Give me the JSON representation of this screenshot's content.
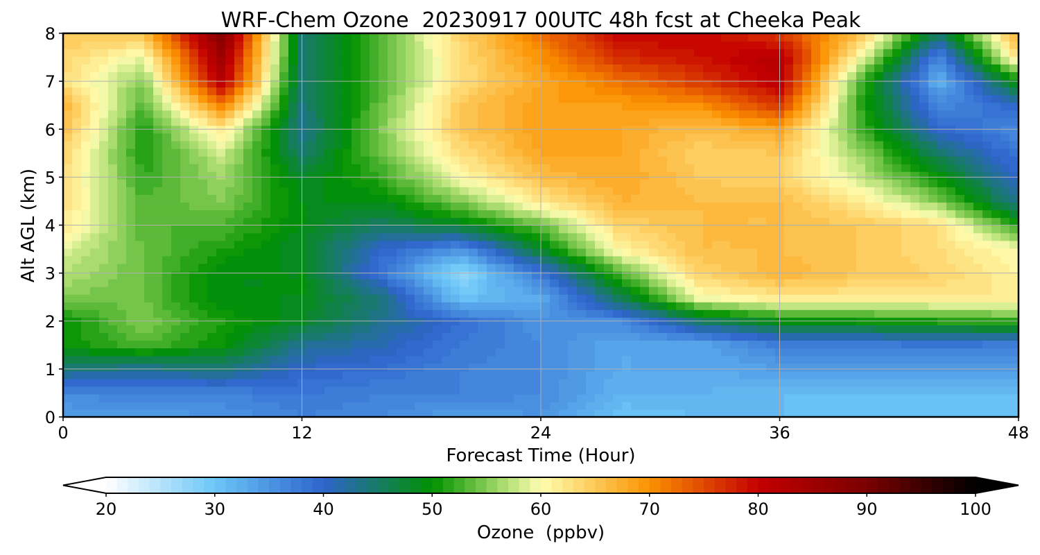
{
  "chart_data": {
    "type": "heatmap",
    "title": "WRF-Chem Ozone  20230917 00UTC 48h fcst at Cheeka Peak",
    "xlabel": "Forecast Time (Hour)",
    "ylabel": "Alt AGL (km)",
    "xlim": [
      0,
      48
    ],
    "ylim": [
      0,
      8
    ],
    "xticks": [
      "0",
      "12",
      "24",
      "36",
      "48"
    ],
    "yticks": [
      "0",
      "1",
      "2",
      "3",
      "4",
      "5",
      "6",
      "7",
      "8"
    ],
    "grid": true,
    "x": [
      0,
      4,
      8,
      12,
      16,
      20,
      24,
      28,
      32,
      36,
      40,
      44,
      48
    ],
    "y": [
      0,
      0.5,
      1,
      1.5,
      2,
      2.5,
      3,
      3.5,
      4,
      4.5,
      5,
      5.5,
      6,
      6.5,
      7,
      7.5,
      8
    ],
    "z": [
      [
        34,
        34,
        35,
        37,
        36,
        34,
        35,
        30,
        31,
        31,
        30,
        30,
        30
      ],
      [
        36,
        37,
        37,
        38,
        37,
        37,
        36,
        32,
        32,
        31,
        31,
        31,
        31
      ],
      [
        44,
        43,
        44,
        40,
        39,
        37,
        36,
        33,
        33,
        34,
        34,
        34,
        34
      ],
      [
        50,
        53,
        50,
        43,
        41,
        38,
        36,
        33,
        33,
        37,
        37,
        38,
        37
      ],
      [
        50,
        55,
        51,
        48,
        43,
        39,
        35,
        36,
        45,
        49,
        50,
        51,
        52
      ],
      [
        55,
        54,
        49,
        49,
        44,
        30,
        33,
        46,
        60,
        62,
        62,
        62,
        62
      ],
      [
        57,
        54,
        49,
        49,
        38,
        27,
        38,
        53,
        64,
        67,
        65,
        64,
        61
      ],
      [
        59,
        54,
        51,
        48,
        40,
        35,
        48,
        61,
        66,
        66,
        65,
        63,
        60
      ],
      [
        62,
        53,
        53,
        49,
        45,
        48,
        54,
        64,
        66,
        66,
        65,
        63,
        51
      ],
      [
        63,
        53,
        55,
        49,
        49,
        55,
        62,
        67,
        66,
        66,
        62,
        55,
        43
      ],
      [
        63,
        52,
        56,
        48,
        52,
        60,
        66,
        68,
        65,
        64,
        58,
        50,
        40
      ],
      [
        64,
        51,
        58,
        45,
        54,
        63,
        68,
        68,
        64,
        65,
        56,
        45,
        38
      ],
      [
        66,
        51,
        62,
        43,
        55,
        65,
        69,
        68,
        66,
        68,
        53,
        40,
        36
      ],
      [
        67,
        53,
        71,
        44,
        54,
        65,
        69,
        69,
        70,
        76,
        52,
        36,
        40
      ],
      [
        63,
        55,
        82,
        44,
        53,
        63,
        68,
        72,
        76,
        81,
        53,
        32,
        50
      ],
      [
        64,
        59,
        85,
        45,
        53,
        63,
        70,
        77,
        79,
        82,
        60,
        36,
        63
      ],
      [
        65,
        66,
        89,
        44,
        53,
        64,
        72,
        80,
        80,
        76,
        66,
        45,
        68
      ]
    ],
    "colorbar": {
      "label": "Ozone  (ppbv)",
      "min": 20,
      "max": 100,
      "step": 1,
      "ticks": [
        "20",
        "30",
        "40",
        "50",
        "60",
        "70",
        "80",
        "90",
        "100"
      ],
      "extend": "both",
      "anchors": [
        {
          "v": 20,
          "c": "#ffffff"
        },
        {
          "v": 30,
          "c": "#6cc6f8"
        },
        {
          "v": 40,
          "c": "#2e64cc"
        },
        {
          "v": 50,
          "c": "#009100"
        },
        {
          "v": 56,
          "c": "#9dd664"
        },
        {
          "v": 60,
          "c": "#fefdb0"
        },
        {
          "v": 64,
          "c": "#fed46a"
        },
        {
          "v": 70,
          "c": "#fb9100"
        },
        {
          "v": 80,
          "c": "#c40000"
        },
        {
          "v": 90,
          "c": "#7a0000"
        },
        {
          "v": 100,
          "c": "#000000"
        }
      ]
    }
  }
}
